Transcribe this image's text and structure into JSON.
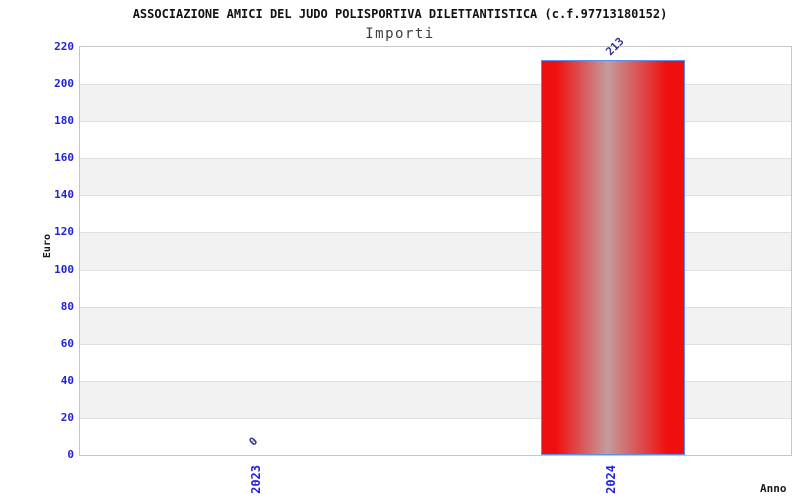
{
  "chart_data": {
    "type": "bar",
    "title": "ASSOCIAZIONE AMICI DEL JUDO POLISPORTIVA DILETTANTISTICA (c.f.97713180152)",
    "subtitle": "Importi",
    "xlabel": "Anno",
    "ylabel": "Euro",
    "categories": [
      "2023",
      "2024"
    ],
    "values": [
      0,
      213
    ],
    "bar_value_labels": [
      "0",
      "213"
    ],
    "ylim": [
      0,
      220
    ],
    "ytick_step": 20,
    "yticks": [
      0,
      20,
      40,
      60,
      80,
      100,
      120,
      140,
      160,
      180,
      200,
      220
    ],
    "grid": true,
    "legend": null,
    "colors": {
      "bar_edge": "#f00f0f",
      "bar_center": "#c49c9c",
      "bar_border": "#5e8ff0",
      "tick_label": "#2222dd",
      "value_label": "#333399",
      "band": "#f2f2f3",
      "gridline": "#e0e0e0",
      "frame": "#c6c6c6",
      "title": "#111111",
      "subtitle": "#3d3d3d",
      "axis_title": "#1a1a1a"
    }
  }
}
